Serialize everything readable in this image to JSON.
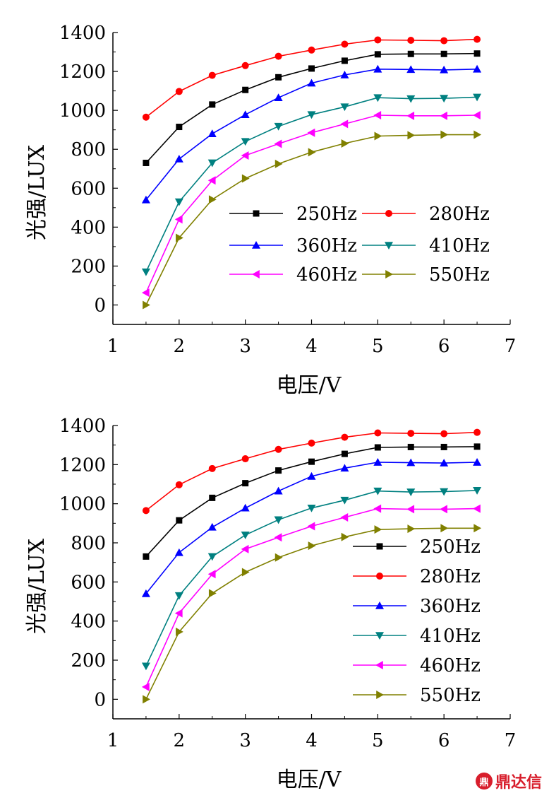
{
  "chart_data": [
    {
      "type": "line",
      "xlabel": "电压/V",
      "ylabel": "光强/LUX",
      "xlim": [
        1,
        7
      ],
      "ylim": [
        -100,
        1400
      ],
      "xticks": [
        1,
        2,
        3,
        4,
        5,
        6,
        7
      ],
      "yticks": [
        0,
        200,
        400,
        600,
        800,
        1000,
        1200,
        1400
      ],
      "grid": false,
      "legend_placement": "center-right, two columns",
      "x": [
        1.5,
        2,
        2.5,
        3,
        3.5,
        4,
        4.5,
        5,
        5.5,
        6,
        6.5
      ],
      "series": [
        {
          "name": "250Hz",
          "color": "#000000",
          "marker": "square",
          "values": [
            730,
            915,
            1030,
            1105,
            1170,
            1215,
            1255,
            1288,
            1290,
            1290,
            1292
          ]
        },
        {
          "name": "280Hz",
          "color": "#ff0000",
          "marker": "circle",
          "values": [
            965,
            1097,
            1180,
            1230,
            1278,
            1310,
            1340,
            1362,
            1360,
            1358,
            1365
          ]
        },
        {
          "name": "360Hz",
          "color": "#0000ff",
          "marker": "triangle-up",
          "values": [
            540,
            750,
            880,
            978,
            1065,
            1140,
            1182,
            1212,
            1210,
            1208,
            1212
          ]
        },
        {
          "name": "410Hz",
          "color": "#008080",
          "marker": "triangle-down",
          "values": [
            170,
            530,
            730,
            840,
            918,
            978,
            1018,
            1065,
            1060,
            1062,
            1068
          ]
        },
        {
          "name": "460Hz",
          "color": "#ff00ff",
          "marker": "triangle-left",
          "values": [
            63,
            440,
            640,
            768,
            828,
            885,
            930,
            975,
            972,
            972,
            975
          ]
        },
        {
          "name": "550Hz",
          "color": "#808000",
          "marker": "triangle-right",
          "values": [
            0,
            345,
            542,
            650,
            725,
            785,
            830,
            868,
            872,
            875,
            875
          ]
        }
      ]
    },
    {
      "type": "line",
      "xlabel": "电压/V",
      "ylabel": "光强/LUX",
      "xlim": [
        1,
        7
      ],
      "ylim": [
        -100,
        1400
      ],
      "xticks": [
        1,
        2,
        3,
        4,
        5,
        6,
        7
      ],
      "yticks": [
        0,
        200,
        400,
        600,
        800,
        1000,
        1200,
        1400
      ],
      "grid": false,
      "legend_placement": "bottom-right, one column",
      "x": [
        1.5,
        2,
        2.5,
        3,
        3.5,
        4,
        4.5,
        5,
        5.5,
        6,
        6.5
      ],
      "series": [
        {
          "name": "250Hz",
          "color": "#000000",
          "marker": "square",
          "values": [
            730,
            915,
            1030,
            1105,
            1170,
            1215,
            1255,
            1288,
            1290,
            1290,
            1292
          ]
        },
        {
          "name": "280Hz",
          "color": "#ff0000",
          "marker": "circle",
          "values": [
            965,
            1097,
            1180,
            1230,
            1278,
            1310,
            1340,
            1362,
            1360,
            1358,
            1365
          ]
        },
        {
          "name": "360Hz",
          "color": "#0000ff",
          "marker": "triangle-up",
          "values": [
            540,
            750,
            880,
            978,
            1065,
            1140,
            1182,
            1212,
            1210,
            1208,
            1212
          ]
        },
        {
          "name": "410Hz",
          "color": "#008080",
          "marker": "triangle-down",
          "values": [
            170,
            530,
            730,
            840,
            918,
            978,
            1018,
            1065,
            1060,
            1062,
            1068
          ]
        },
        {
          "name": "460Hz",
          "color": "#ff00ff",
          "marker": "triangle-left",
          "values": [
            63,
            440,
            640,
            768,
            828,
            885,
            930,
            975,
            972,
            972,
            975
          ]
        },
        {
          "name": "550Hz",
          "color": "#808000",
          "marker": "triangle-right",
          "values": [
            0,
            345,
            542,
            650,
            725,
            785,
            830,
            868,
            872,
            875,
            875
          ]
        }
      ]
    }
  ],
  "watermark": {
    "text": "鼎达信",
    "logo_glyph": "鼎"
  }
}
